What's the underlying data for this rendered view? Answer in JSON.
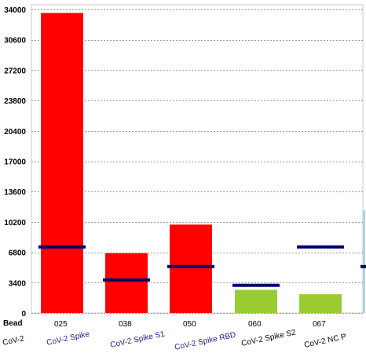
{
  "chart_data": {
    "type": "bar",
    "ylim": [
      0,
      34000
    ],
    "yticks": [
      0,
      3400,
      6800,
      10200,
      13600,
      17000,
      20400,
      23800,
      27200,
      30600,
      34000
    ],
    "grid": "horizontal dashed",
    "row_label": "Bead",
    "categories": [
      "025",
      "038",
      "050",
      "060",
      "067"
    ],
    "analytes": [
      "CoV-2",
      "CoV-2 Spike",
      "CoV-2 Spike S1",
      "CoV-2 Spike RBD",
      "CoV-2 Spike S2",
      "CoV-2 NC P"
    ],
    "series": [
      {
        "values": [
          33600,
          6700,
          9900,
          2600,
          2100
        ]
      },
      {
        "values": [
          7400,
          3700,
          5200,
          3100,
          7400
        ]
      }
    ],
    "bar_colors": [
      "#ff0000",
      "#ff0000",
      "#ff0000",
      "#99cc33",
      "#99cc33"
    ],
    "threshold_color": "#00006b",
    "partial_right": {
      "bar_value": 11500,
      "bar_color": "#a8d8e0",
      "threshold_value": 5200
    }
  }
}
